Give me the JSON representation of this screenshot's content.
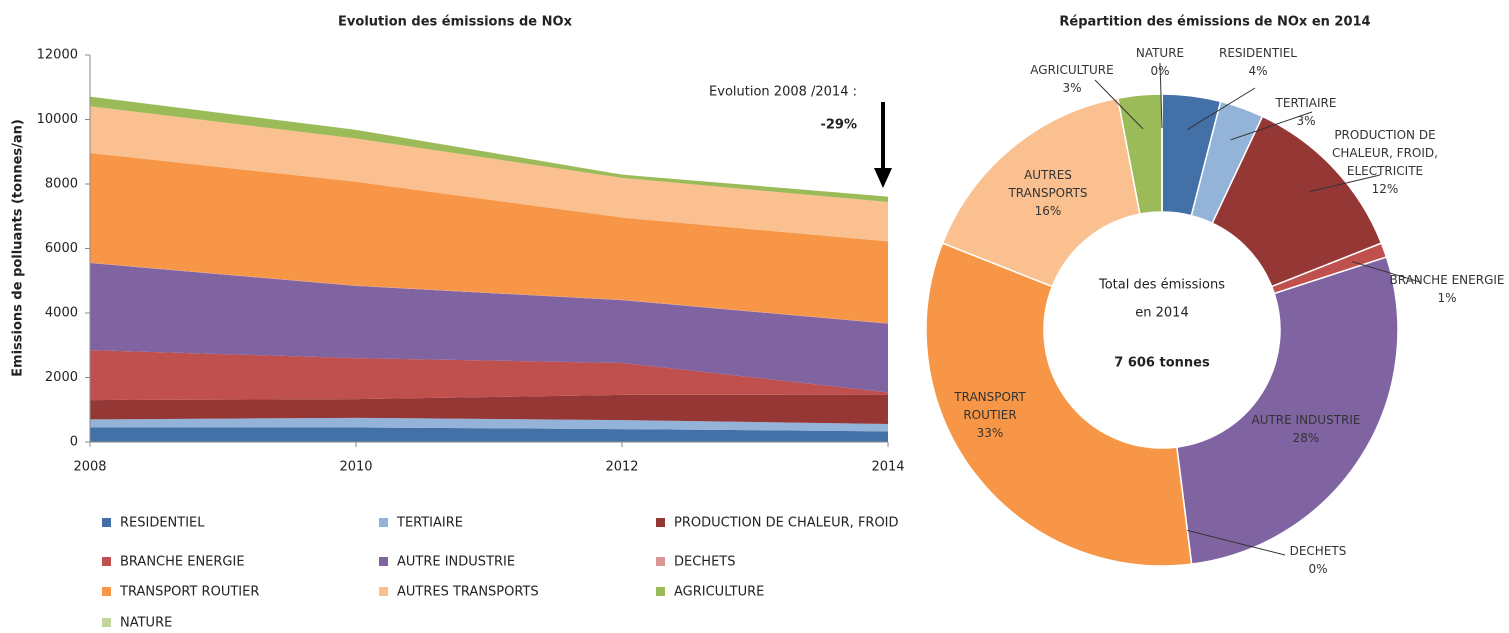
{
  "chart_data": [
    {
      "type": "stacked_area",
      "title": "Evolution des émissions de NOx",
      "y_label": "Emissions de polluants (tonnes/an)",
      "x": [
        2008,
        2010,
        2012,
        2014
      ],
      "xlim": [
        2008,
        2014
      ],
      "xticks": [
        2008,
        2010,
        2012,
        2014
      ],
      "ylim": [
        0,
        12000
      ],
      "yticks": [
        0,
        2000,
        4000,
        6000,
        8000,
        10000,
        12000
      ],
      "annotation": "Evolution 2008 /2014 :",
      "annotation_value": "-29%",
      "series": [
        {
          "name": "RESIDENTIEL",
          "color": "#4470a8",
          "values": [
            450,
            450,
            400,
            330
          ]
        },
        {
          "name": "TERTIAIRE",
          "color": "#93b3d9",
          "values": [
            250,
            300,
            280,
            230
          ]
        },
        {
          "name": "PRODUCTION DE CHALEUR, FROID",
          "color": "#953735",
          "values": [
            600,
            580,
            780,
            910
          ]
        },
        {
          "name": "BRANCHE ENERGIE",
          "color": "#c0504d",
          "values": [
            1550,
            1270,
            990,
            70
          ]
        },
        {
          "name": "AUTRE INDUSTRIE",
          "color": "#8064a2",
          "values": [
            2700,
            2240,
            1950,
            2130
          ]
        },
        {
          "name": "DECHETS",
          "color": "#d99694",
          "values": [
            10,
            10,
            10,
            10
          ]
        },
        {
          "name": "TRANSPORT ROUTIER",
          "color": "#f79646",
          "values": [
            3400,
            3220,
            2550,
            2540
          ]
        },
        {
          "name": "AUTRES TRANSPORTS",
          "color": "#fac090",
          "values": [
            1450,
            1340,
            1230,
            1220
          ]
        },
        {
          "name": "AGRICULTURE",
          "color": "#9bbb59",
          "values": [
            300,
            270,
            100,
            170
          ]
        },
        {
          "name": "NATURE",
          "color": "#c3d69b",
          "values": [
            0,
            0,
            0,
            0
          ]
        }
      ]
    },
    {
      "type": "donut",
      "title": "Répartition des émissions de NOx en 2014",
      "center_text": [
        "Total des émissions",
        "en 2014"
      ],
      "center_value": "7 606 tonnes",
      "categories": [
        "RESIDENTIEL",
        "TERTIAIRE",
        "PRODUCTION DE CHALEUR, FROID, ELECTRICITE",
        "BRANCHE ENERGIE",
        "AUTRE INDUSTRIE",
        "DECHETS",
        "TRANSPORT ROUTIER",
        "AUTRES TRANSPORTS",
        "AGRICULTURE",
        "NATURE"
      ],
      "values": [
        4,
        3,
        12,
        1,
        28,
        0,
        33,
        16,
        3,
        0
      ],
      "value_labels": [
        "4%",
        "3%",
        "12%",
        "1%",
        "28%",
        "0%",
        "33%",
        "16%",
        "3%",
        "0%"
      ],
      "colors": [
        "#4470a8",
        "#93b3d9",
        "#953735",
        "#c0504d",
        "#8064a2",
        "#d99694",
        "#f79646",
        "#fac090",
        "#9bbb59",
        "#c3d69b"
      ]
    }
  ]
}
